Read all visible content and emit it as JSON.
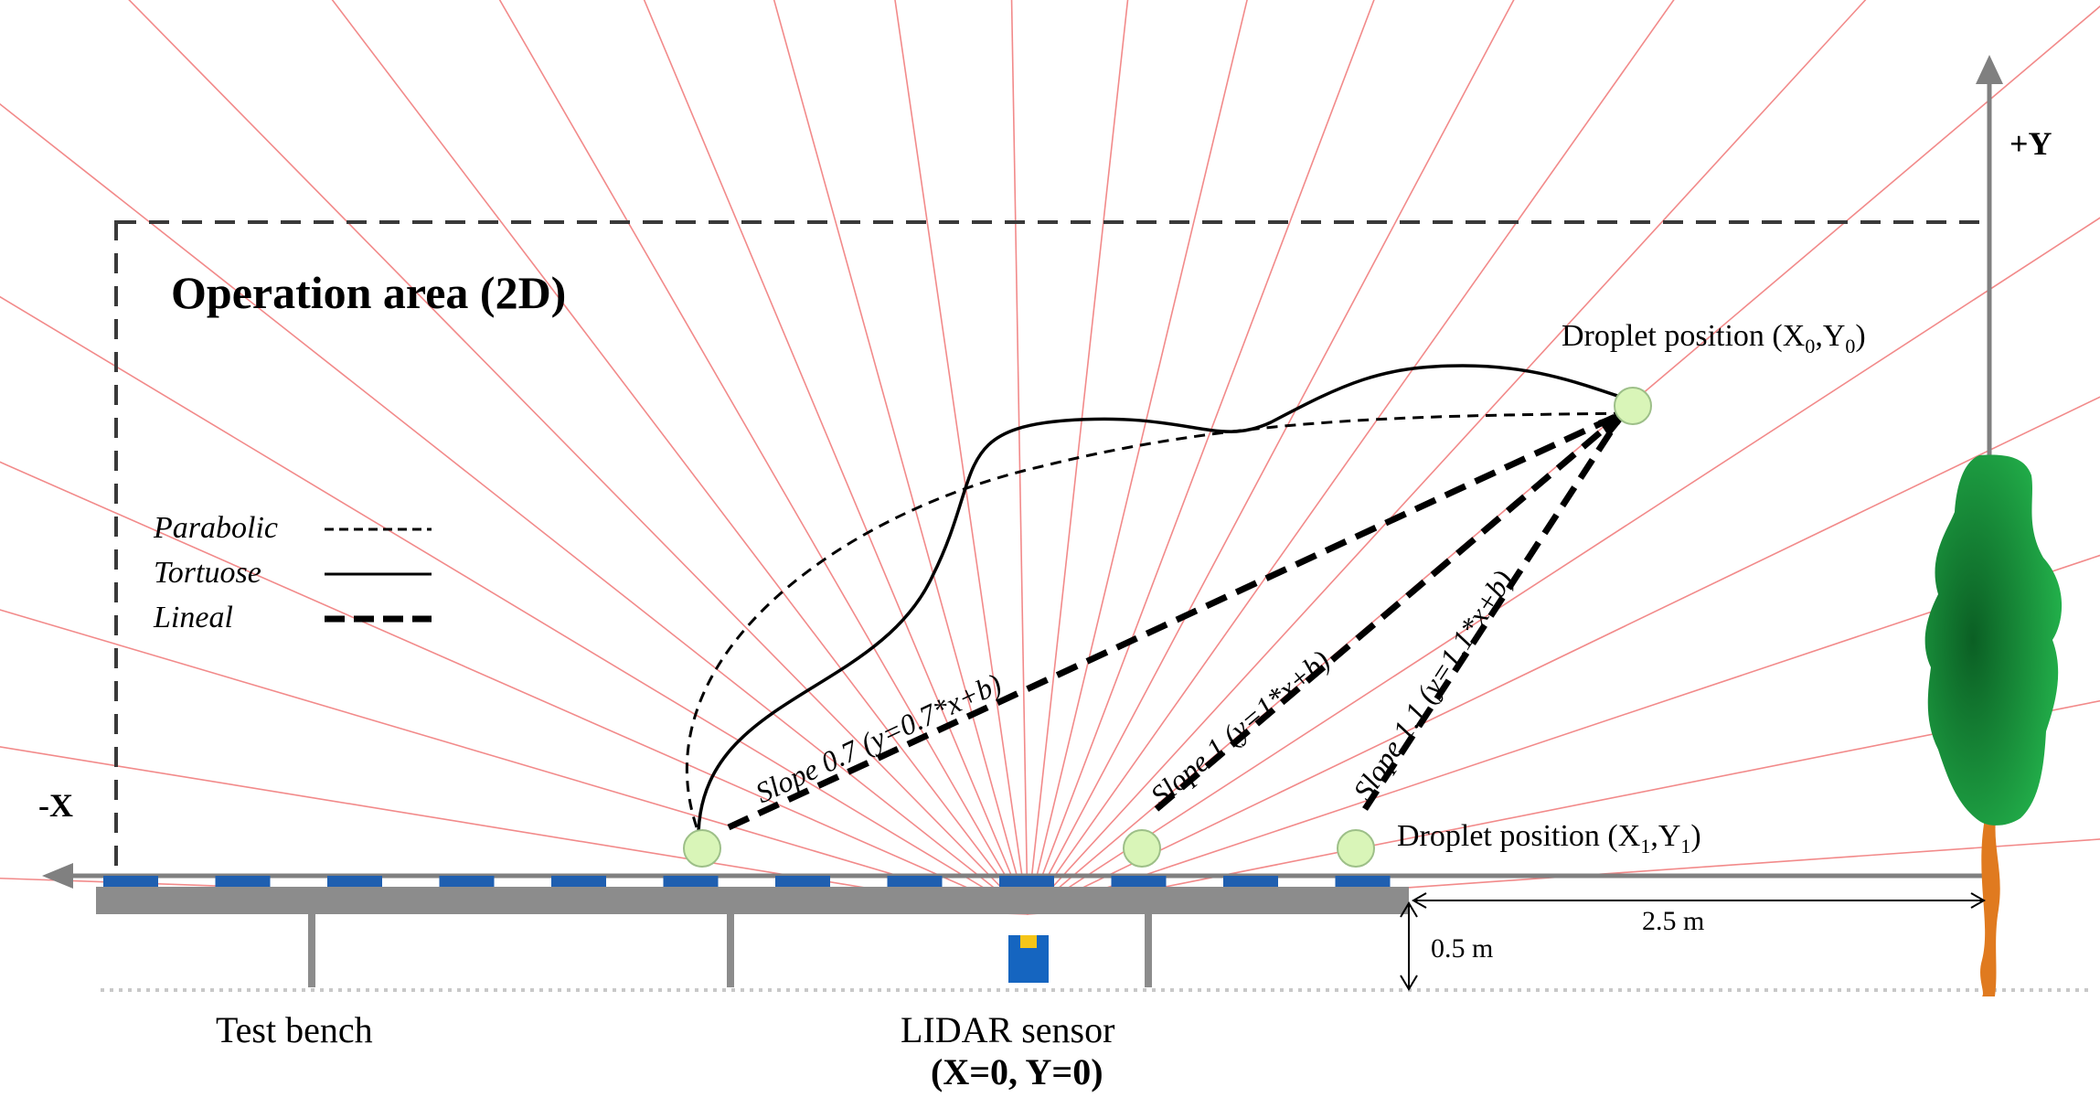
{
  "title": "Operation area (2D)",
  "axes": {
    "x_label": "-X",
    "y_label": "+Y"
  },
  "legend": [
    {
      "label": "Parabolic",
      "style": "dashed-thin"
    },
    {
      "label": "Tortuose",
      "style": "solid"
    },
    {
      "label": "Lineal",
      "style": "dashed-thick"
    }
  ],
  "droplet_top": {
    "prefix": "Droplet  position  (X",
    "sub_x": "0",
    "mid": ",Y",
    "sub_y": "0",
    "suffix": ")"
  },
  "droplet_bottom": {
    "prefix": "Droplet position (X",
    "sub_x": "1",
    "mid": ",Y",
    "sub_y": "1",
    "suffix": ")"
  },
  "slopes": {
    "s07": "Slope 0.7 (y=0.7*x+b)",
    "s1": "Slope 1 (y=1*x+b)",
    "s11": "Slope 1.1 (y=1.1*x+b)"
  },
  "dimensions": {
    "height": "0.5 m",
    "distance": "2.5 m"
  },
  "labels": {
    "test_bench": "Test bench",
    "lidar": "LIDAR sensor",
    "origin": "(X=0, Y=0)"
  },
  "colors": {
    "beam": "#f28a8a",
    "bench": "#8c8c8c",
    "emitter": "#1f5fb0",
    "sensor": "#1565c0",
    "sensor_top": "#f5c518",
    "droplet": "#d9f5b8",
    "tree_dark": "#0d6e2c",
    "tree_light": "#22b24c",
    "trunk": "#e07a1f"
  }
}
